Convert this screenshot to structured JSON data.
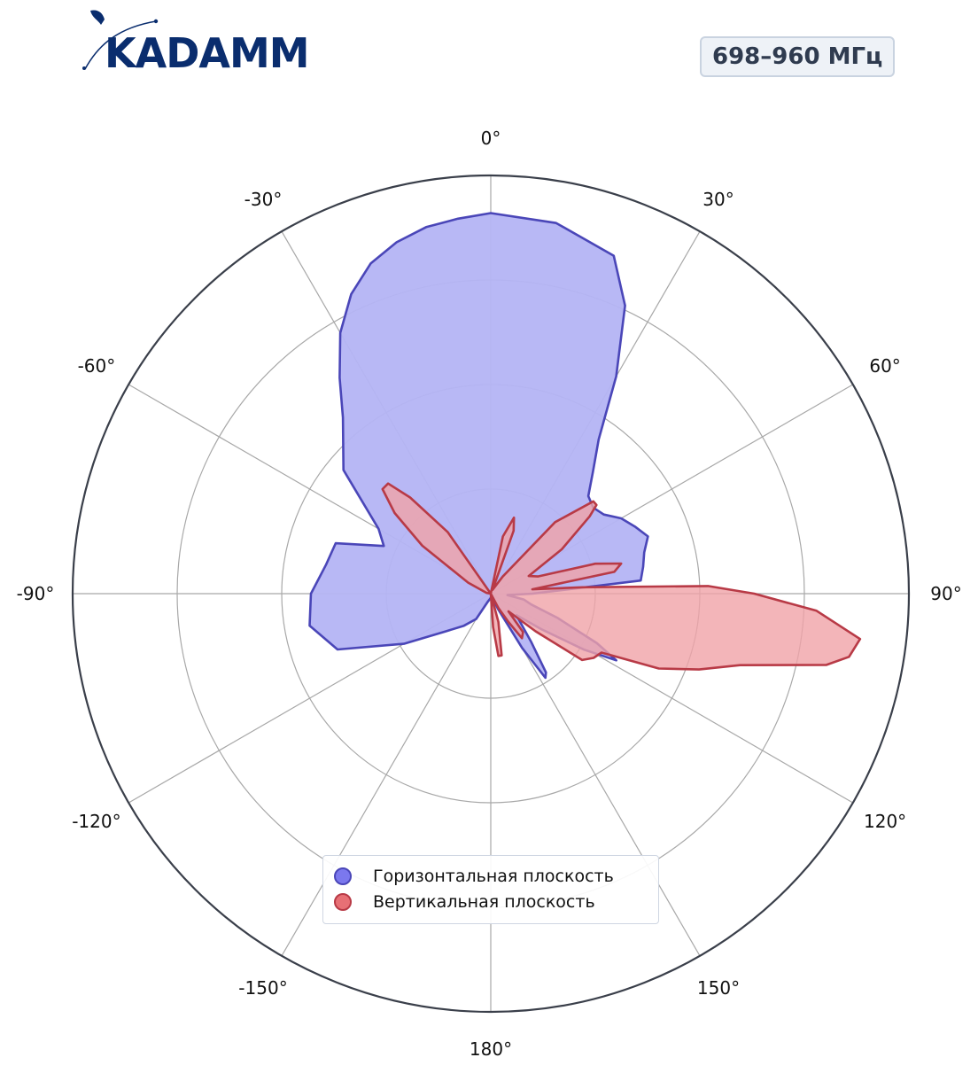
{
  "header": {
    "logo_text": "KADAMM",
    "band_badge": "698–960 МГц"
  },
  "colors": {
    "horizontal_fill": "#b4b4f4",
    "horizontal_stroke": "#4a46b8",
    "vertical_fill": "#f0a3a8",
    "vertical_stroke": "#b83a46",
    "grid": "#a8a8a8",
    "outer_ring": "#3a3f4a",
    "logo": "#0a2d6e"
  },
  "chart_data": {
    "type": "polar",
    "angle_unit": "degrees",
    "zero_location": "top",
    "direction": "clockwise",
    "angle_ticks": [
      {
        "angle": 0,
        "label": "0°"
      },
      {
        "angle": 30,
        "label": "30°"
      },
      {
        "angle": 60,
        "label": "60°"
      },
      {
        "angle": 90,
        "label": "90°"
      },
      {
        "angle": 120,
        "label": "120°"
      },
      {
        "angle": 150,
        "label": "150°"
      },
      {
        "angle": 180,
        "label": "180°"
      },
      {
        "angle": -150,
        "label": "-150°"
      },
      {
        "angle": -120,
        "label": "-120°"
      },
      {
        "angle": -90,
        "label": "-90°"
      },
      {
        "angle": -60,
        "label": "-60°"
      },
      {
        "angle": -30,
        "label": "-30°"
      }
    ],
    "radial_grid": [
      0.25,
      0.5,
      0.75,
      1.0
    ],
    "radial_limit": 1.0,
    "radial_tick_labels": false,
    "legend_position": "lower-center",
    "series": [
      {
        "name": "Горизонтальная плоскость",
        "points": [
          [
            0,
            0.91
          ],
          [
            10,
            0.9
          ],
          [
            20,
            0.86
          ],
          [
            25,
            0.76
          ],
          [
            30,
            0.6
          ],
          [
            35,
            0.45
          ],
          [
            40,
            0.38
          ],
          [
            45,
            0.33
          ],
          [
            50,
            0.32
          ],
          [
            55,
            0.33
          ],
          [
            60,
            0.36
          ],
          [
            65,
            0.38
          ],
          [
            70,
            0.4
          ],
          [
            75,
            0.38
          ],
          [
            80,
            0.37
          ],
          [
            85,
            0.36
          ],
          [
            90,
            0.1
          ],
          [
            95,
            0.04
          ],
          [
            100,
            0.08
          ],
          [
            105,
            0.1
          ],
          [
            110,
            0.17
          ],
          [
            115,
            0.28
          ],
          [
            118,
            0.34
          ],
          [
            121,
            0.26
          ],
          [
            125,
            0.15
          ],
          [
            130,
            0.08
          ],
          [
            140,
            0.15
          ],
          [
            145,
            0.23
          ],
          [
            147,
            0.24
          ],
          [
            150,
            0.15
          ],
          [
            155,
            0.04
          ],
          [
            160,
            0.01
          ],
          [
            180,
            0.01
          ],
          [
            -160,
            0.02
          ],
          [
            -150,
            0.07
          ],
          [
            -140,
            0.1
          ],
          [
            -130,
            0.14
          ],
          [
            -120,
            0.24
          ],
          [
            -110,
            0.39
          ],
          [
            -100,
            0.44
          ],
          [
            -90,
            0.43
          ],
          [
            -80,
            0.4
          ],
          [
            -72,
            0.39
          ],
          [
            -66,
            0.28
          ],
          [
            -60,
            0.31
          ],
          [
            -50,
            0.46
          ],
          [
            -40,
            0.55
          ],
          [
            -35,
            0.63
          ],
          [
            -30,
            0.72
          ],
          [
            -25,
            0.79
          ],
          [
            -20,
            0.84
          ],
          [
            -15,
            0.87
          ],
          [
            -10,
            0.89
          ],
          [
            -5,
            0.9
          ],
          [
            0,
            0.91
          ]
        ]
      },
      {
        "name": "Вертикальная плоскость",
        "points": [
          [
            0,
            0.0
          ],
          [
            5,
            0.0
          ],
          [
            12,
            0.14
          ],
          [
            17,
            0.19
          ],
          [
            20,
            0.16
          ],
          [
            25,
            0.01
          ],
          [
            35,
            0.05
          ],
          [
            42,
            0.23
          ],
          [
            48,
            0.33
          ],
          [
            50,
            0.33
          ],
          [
            52,
            0.3
          ],
          [
            58,
            0.2
          ],
          [
            65,
            0.1
          ],
          [
            70,
            0.12
          ],
          [
            74,
            0.26
          ],
          [
            77,
            0.32
          ],
          [
            80,
            0.3
          ],
          [
            84,
            0.1
          ],
          [
            86,
            0.22
          ],
          [
            88,
            0.52
          ],
          [
            90,
            0.63
          ],
          [
            93,
            0.78
          ],
          [
            97,
            0.89
          ],
          [
            100,
            0.87
          ],
          [
            102,
            0.82
          ],
          [
            106,
            0.62
          ],
          [
            110,
            0.53
          ],
          [
            114,
            0.44
          ],
          [
            118,
            0.3
          ],
          [
            122,
            0.29
          ],
          [
            126,
            0.27
          ],
          [
            130,
            0.14
          ],
          [
            135,
            0.06
          ],
          [
            140,
            0.12
          ],
          [
            145,
            0.13
          ],
          [
            148,
            0.08
          ],
          [
            152,
            0.04
          ],
          [
            156,
            0.0
          ],
          [
            165,
            0.07
          ],
          [
            170,
            0.15
          ],
          [
            173,
            0.15
          ],
          [
            176,
            0.08
          ],
          [
            180,
            0.0
          ],
          [
            -150,
            0.0
          ],
          [
            -100,
            0.0
          ],
          [
            -85,
            0.0
          ],
          [
            -80,
            0.01
          ],
          [
            -64,
            0.06
          ],
          [
            -55,
            0.2
          ],
          [
            -50,
            0.3
          ],
          [
            -46,
            0.36
          ],
          [
            -43,
            0.36
          ],
          [
            -40,
            0.3
          ],
          [
            -35,
            0.18
          ],
          [
            -30,
            0.0
          ],
          [
            0,
            0.0
          ]
        ]
      }
    ]
  }
}
